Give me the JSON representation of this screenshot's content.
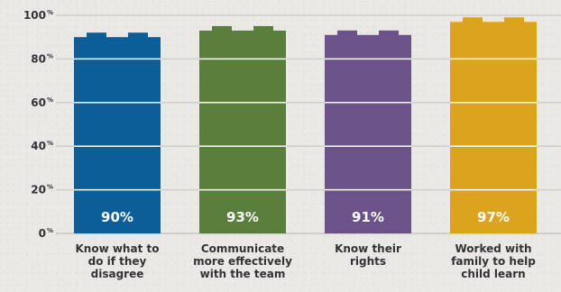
{
  "chart_data": {
    "type": "bar",
    "categories": [
      [
        "Know what to",
        "do if they",
        "disagree"
      ],
      [
        "Communicate",
        "more effectively",
        "with the team"
      ],
      [
        "Know their",
        "rights"
      ],
      [
        "Worked with",
        "family to help",
        "child learn"
      ]
    ],
    "values": [
      90,
      93,
      91,
      97
    ],
    "data_labels": [
      "90%",
      "93%",
      "91%",
      "97%"
    ],
    "y_ticks": [
      {
        "value": 0,
        "label": "0",
        "suffix": "%"
      },
      {
        "value": 20,
        "label": "20",
        "suffix": "%"
      },
      {
        "value": 40,
        "label": "40",
        "suffix": "%"
      },
      {
        "value": 60,
        "label": "60",
        "suffix": "%"
      },
      {
        "value": 80,
        "label": "80",
        "suffix": "%"
      },
      {
        "value": 100,
        "label": "100",
        "suffix": "%"
      }
    ],
    "ylim": [
      0,
      100
    ],
    "grid": true,
    "bar_colors": [
      "#0b5e98",
      "#5a7f3c",
      "#6b5289",
      "#dca31f"
    ]
  }
}
